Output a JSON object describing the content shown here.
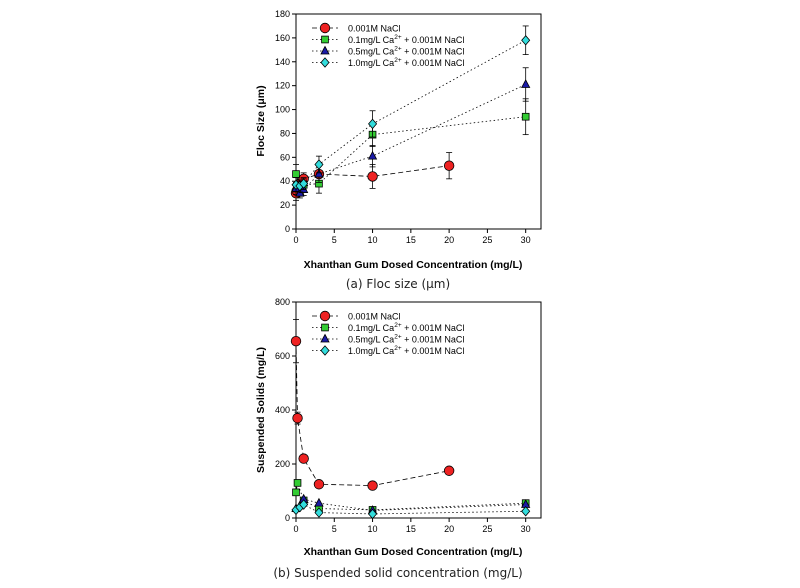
{
  "colors": {
    "red": "#ee2222",
    "green": "#33cc33",
    "blue": "#1a1aa6",
    "cyan": "#33dddd",
    "axis": "#000000"
  },
  "chart_data": [
    {
      "type": "scatter",
      "caption": "(a) Floc size (μm)",
      "xlabel": "Xhanthan Gum Dosed Concentration (mg/L)",
      "ylabel": "Floc Size (μm)",
      "xlim": [
        0,
        32
      ],
      "ylim": [
        0,
        180
      ],
      "xticks": [
        0,
        5,
        10,
        15,
        20,
        25,
        30
      ],
      "yticks": [
        0,
        20,
        40,
        60,
        80,
        100,
        120,
        140,
        160,
        180
      ],
      "legend_position": "top-left",
      "series": [
        {
          "name": "0.001M NaCl",
          "legend": {
            "pre": "0.001M NaCl",
            "sup": "",
            "post": ""
          },
          "marker": "circle",
          "color": "red",
          "line": "dashed",
          "points": [
            [
              0,
              30,
              6
            ],
            [
              0.1,
              32,
              5
            ],
            [
              0.5,
              38,
              4
            ],
            [
              1,
              42,
              5
            ],
            [
              3,
              46,
              8
            ],
            [
              10,
              44,
              10
            ],
            [
              20,
              53,
              11
            ]
          ]
        },
        {
          "name": "0.1mg/L Ca2+ + 0.001M NaCl",
          "legend": {
            "pre": "0.1mg/L Ca",
            "sup": "2+",
            "post": " + 0.001M NaCl"
          },
          "marker": "square",
          "color": "green",
          "line": "dotted",
          "points": [
            [
              0,
              46,
              8
            ],
            [
              0.5,
              35,
              5
            ],
            [
              1,
              37,
              5
            ],
            [
              3,
              38,
              8
            ],
            [
              10,
              79,
              10
            ],
            [
              30,
              94,
              15
            ]
          ]
        },
        {
          "name": "0.5mg/L Ca2+ + 0.001M NaCl",
          "legend": {
            "pre": "0.5mg/L Ca",
            "sup": "2+",
            "post": " + 0.001M NaCl"
          },
          "marker": "triangle",
          "color": "blue",
          "line": "dotted",
          "points": [
            [
              0,
              34,
              5
            ],
            [
              0.5,
              30,
              4
            ],
            [
              1,
              33,
              5
            ],
            [
              3,
              46,
              7
            ],
            [
              10,
              61,
              9
            ],
            [
              30,
              121,
              14
            ]
          ]
        },
        {
          "name": "1.0mg/L Ca2+ + 0.001M NaCl",
          "legend": {
            "pre": "1.0mg/L Ca",
            "sup": "2+",
            "post": " + 0.001M NaCl"
          },
          "marker": "diamond",
          "color": "cyan",
          "line": "dotted",
          "points": [
            [
              0,
              37,
              6
            ],
            [
              0.5,
              36,
              5
            ],
            [
              1,
              38,
              5
            ],
            [
              3,
              54,
              7
            ],
            [
              10,
              88,
              11
            ],
            [
              30,
              158,
              12
            ]
          ]
        }
      ]
    },
    {
      "type": "scatter",
      "caption": "(b) Suspended solid concentration (mg/L)",
      "xlabel": "Xhanthan Gum Dosed Concentration (mg/L)",
      "ylabel": "Suspended Solids (mg/L)",
      "xlim": [
        0,
        32
      ],
      "ylim": [
        0,
        800
      ],
      "xticks": [
        0,
        5,
        10,
        15,
        20,
        25,
        30
      ],
      "yticks": [
        0,
        200,
        400,
        600,
        800
      ],
      "legend_position": "top-left",
      "series": [
        {
          "name": "0.001M NaCl",
          "legend": {
            "pre": "0.001M NaCl",
            "sup": "",
            "post": ""
          },
          "marker": "circle",
          "color": "red",
          "line": "dashed",
          "points": [
            [
              0,
              655,
              80
            ],
            [
              0.2,
              370,
              22
            ],
            [
              1,
              220,
              10
            ],
            [
              3,
              125,
              8
            ],
            [
              10,
              120,
              8
            ],
            [
              20,
              175,
              8
            ]
          ]
        },
        {
          "name": "0.1mg/L Ca2+ + 0.001M NaCl",
          "legend": {
            "pre": "0.1mg/L Ca",
            "sup": "2+",
            "post": " + 0.001M NaCl"
          },
          "marker": "square",
          "color": "green",
          "line": "dotted",
          "points": [
            [
              0,
              95,
              0
            ],
            [
              0.2,
              130,
              0
            ],
            [
              1,
              65,
              0
            ],
            [
              3,
              35,
              0
            ],
            [
              10,
              30,
              0
            ],
            [
              30,
              55,
              0
            ]
          ]
        },
        {
          "name": "0.5mg/L Ca2+ + 0.001M NaCl",
          "legend": {
            "pre": "0.5mg/L Ca",
            "sup": "2+",
            "post": " + 0.001M NaCl"
          },
          "marker": "triangle",
          "color": "blue",
          "line": "dotted",
          "points": [
            [
              0,
              35,
              0
            ],
            [
              0.5,
              45,
              0
            ],
            [
              1,
              70,
              0
            ],
            [
              3,
              55,
              0
            ],
            [
              10,
              28,
              0
            ],
            [
              30,
              50,
              0
            ]
          ]
        },
        {
          "name": "1.0mg/L Ca2+ + 0.001M NaCl",
          "legend": {
            "pre": "1.0mg/L Ca",
            "sup": "2+",
            "post": " + 0.001M NaCl"
          },
          "marker": "diamond",
          "color": "cyan",
          "line": "dotted",
          "points": [
            [
              0,
              30,
              0
            ],
            [
              0.5,
              40,
              0
            ],
            [
              1,
              50,
              0
            ],
            [
              3,
              20,
              0
            ],
            [
              10,
              15,
              0
            ],
            [
              30,
              25,
              0
            ]
          ]
        }
      ]
    }
  ]
}
